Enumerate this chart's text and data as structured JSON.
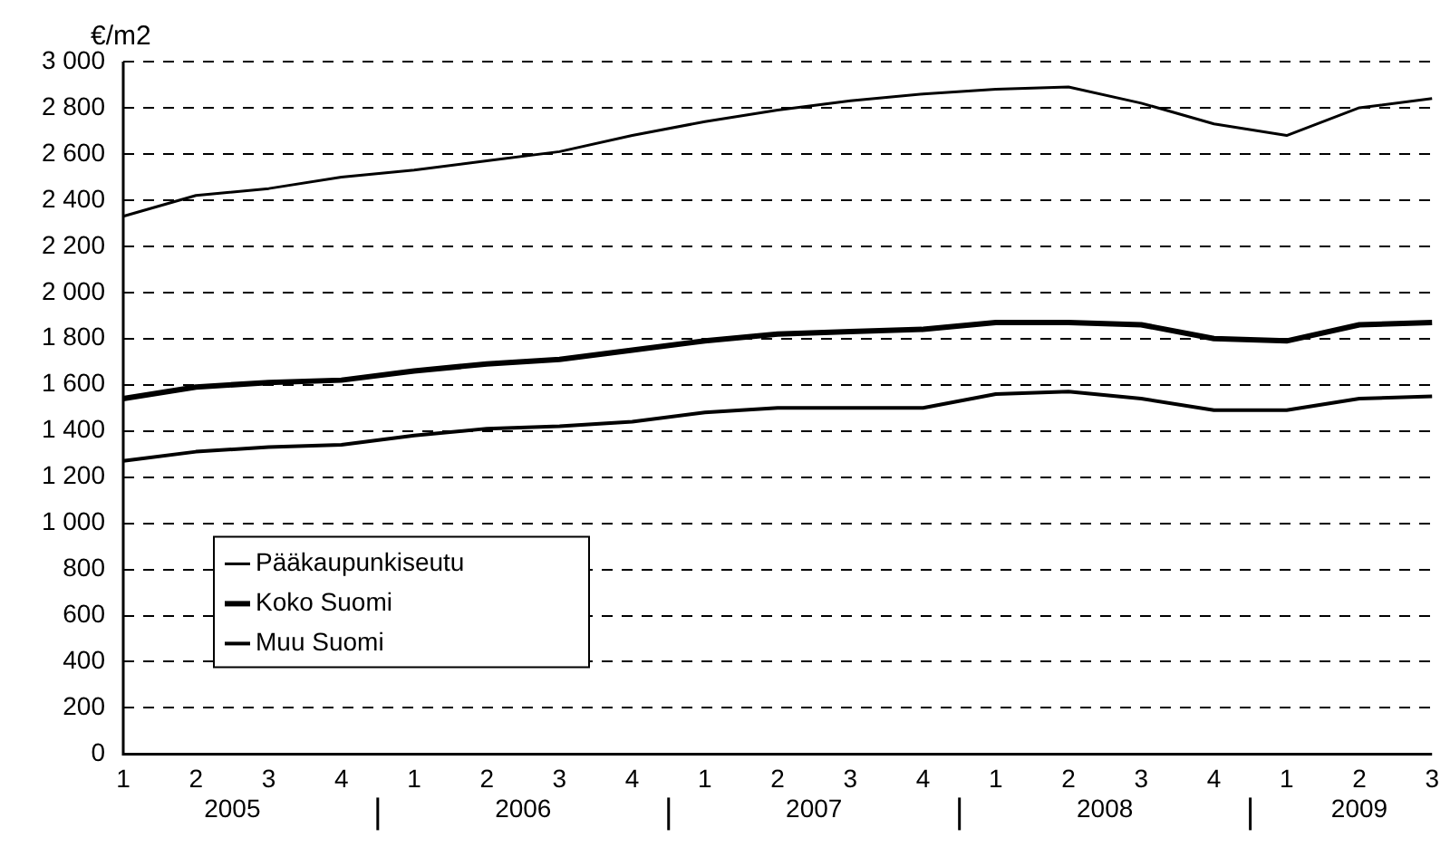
{
  "chart_data": {
    "type": "line",
    "ylabel": "€/m2",
    "categories": [
      "1",
      "2",
      "3",
      "4",
      "1",
      "2",
      "3",
      "4",
      "1",
      "2",
      "3",
      "4",
      "1",
      "2",
      "3",
      "4",
      "1",
      "2",
      "3"
    ],
    "annotations": [
      "2005",
      "2006",
      "2007",
      "2008",
      "2009"
    ],
    "series": [
      {
        "name": "Pääkaupunkiseutu",
        "color": "#000000",
        "values": [
          2330,
          2420,
          2450,
          2500,
          2530,
          2570,
          2610,
          2680,
          2740,
          2790,
          2830,
          2860,
          2880,
          2890,
          2820,
          2730,
          2680,
          2800,
          2840
        ]
      },
      {
        "name": "Koko Suomi",
        "color": "#000000",
        "values": [
          1540,
          1590,
          1610,
          1620,
          1660,
          1690,
          1710,
          1750,
          1790,
          1820,
          1830,
          1840,
          1870,
          1870,
          1860,
          1800,
          1790,
          1860,
          1870
        ]
      },
      {
        "name": "Muu Suomi",
        "color": "#000000",
        "values": [
          1270,
          1310,
          1330,
          1340,
          1380,
          1410,
          1420,
          1440,
          1480,
          1500,
          1500,
          1500,
          1560,
          1570,
          1540,
          1490,
          1490,
          1540,
          1550
        ]
      }
    ],
    "ylim": [
      0,
      3000
    ],
    "yticks": [
      0,
      200,
      400,
      600,
      800,
      {
        "value": 1000,
        "label": "1 000"
      },
      {
        "value": 1200,
        "label": "1 200"
      },
      {
        "value": 1400,
        "label": "1 400"
      },
      {
        "value": 1600,
        "label": "1 600"
      },
      {
        "value": 1800,
        "label": "1 800"
      },
      {
        "value": 2000,
        "label": "2 000"
      },
      {
        "value": 2200,
        "label": "2 200"
      },
      {
        "value": 2400,
        "label": "2 400"
      },
      {
        "value": 2600,
        "label": "2 600"
      },
      {
        "value": 2800,
        "label": "2 800"
      },
      {
        "value": 3000,
        "label": "3 000"
      }
    ],
    "grid": "y",
    "legend": "bottom left",
    "marker": "none",
    "line_style": "solid"
  }
}
